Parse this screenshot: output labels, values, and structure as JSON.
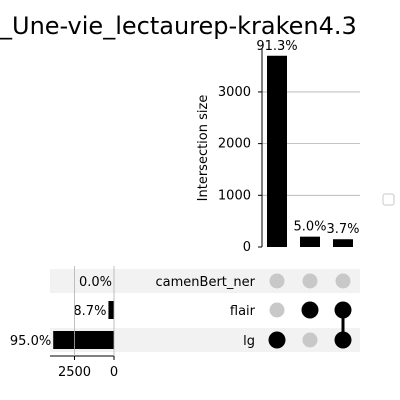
{
  "chart_data": {
    "type": "upset",
    "title": "_Une-vie_lectaurep-kraken4.3",
    "sets": [
      {
        "name": "camenBert_ner",
        "percent_label": "0.0%",
        "percent": 0.0,
        "value": 0
      },
      {
        "name": "flair",
        "percent_label": "8.7%",
        "percent": 8.7,
        "value": 352
      },
      {
        "name": "lg",
        "percent_label": "95.0%",
        "percent": 95.0,
        "value": 3847
      }
    ],
    "intersections": [
      {
        "members": [
          "lg"
        ],
        "value": 3700,
        "percent_label": "91.3%"
      },
      {
        "members": [
          "flair"
        ],
        "value": 200,
        "percent_label": "5.0%"
      },
      {
        "members": [
          "flair",
          "lg"
        ],
        "value": 150,
        "percent_label": "3.7%"
      }
    ],
    "intersection_axis": {
      "ylabel": "Intersection size",
      "ylim": [
        0,
        3850
      ],
      "ticks": [
        0,
        1000,
        2000,
        3000
      ],
      "grid": true
    },
    "set_size_axis": {
      "xlim": [
        0,
        4050
      ],
      "ticks": [
        2500,
        0
      ]
    },
    "colors": {
      "bar": "#000000",
      "dot_active": "#000000",
      "dot_inactive": "#c8c8c8",
      "row_shade": "#f2f2f2",
      "grid": "#b0b0b0"
    },
    "legend": {
      "placement": "right"
    }
  }
}
